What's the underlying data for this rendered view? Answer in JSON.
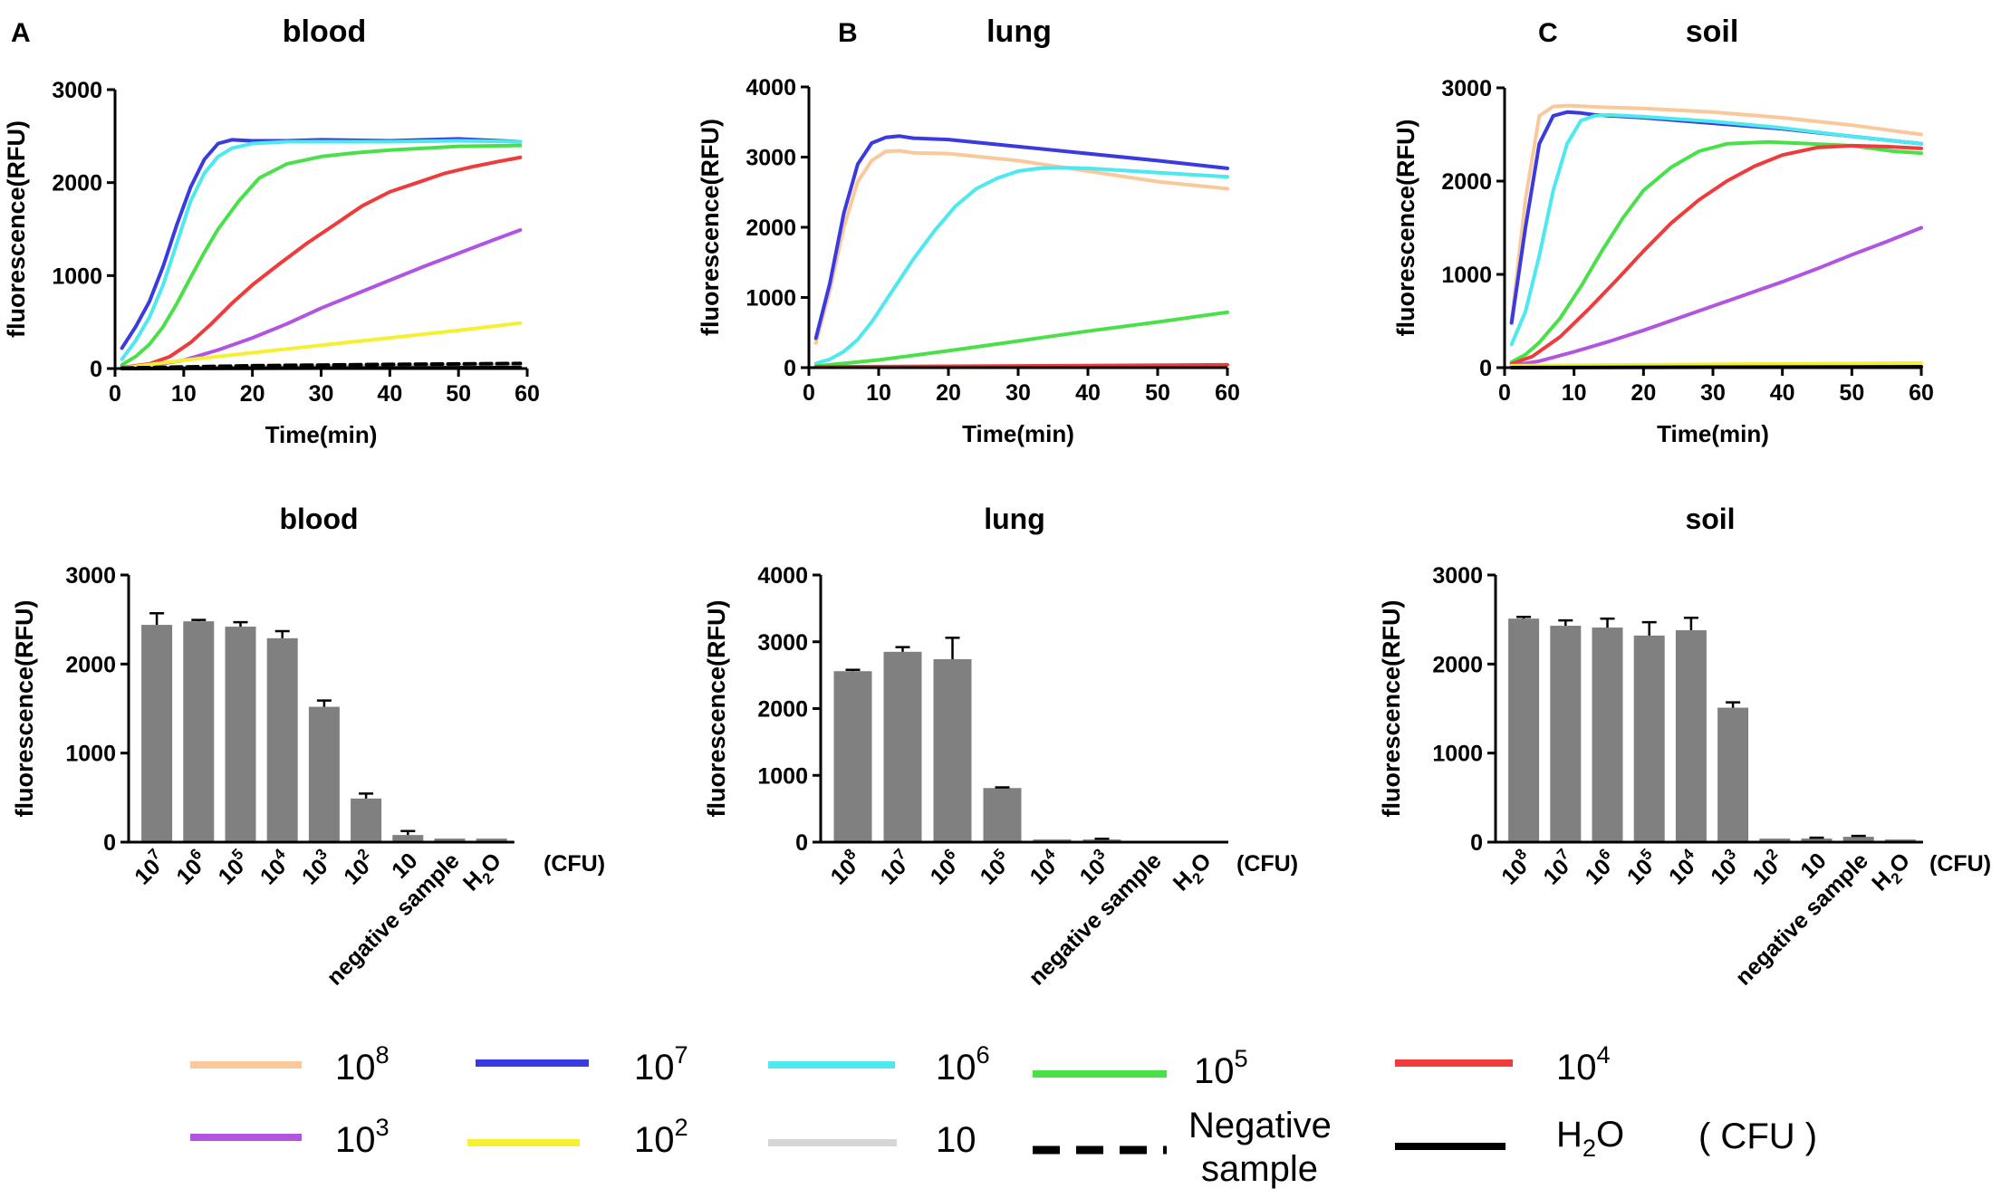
{
  "figure": {
    "colors": {
      "1e8": "#f9c89b",
      "1e7": "#3a3ae0",
      "1e6": "#4de8f0",
      "1e5": "#4ae04a",
      "1e4": "#ef3b3b",
      "1e3": "#b155e0",
      "1e2": "#f5f032",
      "10": "#d6d6d6",
      "neg": "#000000",
      "h2o": "#000000",
      "bar": "#808080"
    },
    "legend": {
      "unit": "( CFU )",
      "items": [
        {
          "key": "1e8",
          "base": "10",
          "sup": "8",
          "dash": false
        },
        {
          "key": "1e7",
          "base": "10",
          "sup": "7",
          "dash": false
        },
        {
          "key": "1e6",
          "base": "10",
          "sup": "6",
          "dash": false
        },
        {
          "key": "1e5",
          "base": "10",
          "sup": "5",
          "dash": false
        },
        {
          "key": "1e4",
          "base": "10",
          "sup": "4",
          "dash": false
        },
        {
          "key": "1e3",
          "base": "10",
          "sup": "3",
          "dash": false
        },
        {
          "key": "1e2",
          "base": "10",
          "sup": "2",
          "dash": false
        },
        {
          "key": "10",
          "base": "10",
          "sup": "",
          "dash": false
        },
        {
          "key": "neg",
          "text": "Negative",
          "text2": "sample",
          "dash": true
        },
        {
          "key": "h2o",
          "text": "H",
          "sub": "2",
          "text_after": "O",
          "dash": false
        }
      ]
    }
  },
  "chart_data": [
    {
      "id": "A-line",
      "panel_letter": "A",
      "type": "line",
      "title": "blood",
      "xlabel": "Time(min)",
      "ylabel": "fluorescence(RFU)",
      "xlim": [
        0,
        60
      ],
      "ylim": [
        0,
        3000
      ],
      "xticks": [
        0,
        10,
        20,
        30,
        40,
        50,
        60
      ],
      "yticks": [
        0,
        1000,
        2000,
        3000
      ],
      "series": [
        {
          "key": "1e7",
          "name": "10^7",
          "x": [
            1,
            3,
            5,
            7,
            9,
            11,
            13,
            15,
            17,
            20,
            25,
            30,
            40,
            50,
            59
          ],
          "y": [
            220,
            450,
            720,
            1100,
            1550,
            1950,
            2250,
            2420,
            2460,
            2450,
            2450,
            2460,
            2450,
            2470,
            2440
          ]
        },
        {
          "key": "1e6",
          "name": "10^6",
          "x": [
            1,
            3,
            5,
            7,
            9,
            11,
            13,
            15,
            17,
            20,
            25,
            30,
            40,
            50,
            59
          ],
          "y": [
            100,
            300,
            550,
            900,
            1350,
            1800,
            2100,
            2280,
            2370,
            2420,
            2440,
            2440,
            2440,
            2450,
            2440
          ]
        },
        {
          "key": "1e5",
          "name": "10^5",
          "x": [
            1,
            3,
            5,
            7,
            9,
            11,
            13,
            15,
            18,
            21,
            25,
            30,
            35,
            40,
            50,
            59
          ],
          "y": [
            40,
            130,
            260,
            450,
            700,
            980,
            1250,
            1500,
            1800,
            2050,
            2200,
            2280,
            2320,
            2350,
            2390,
            2400
          ]
        },
        {
          "key": "1e4",
          "name": "10^4",
          "x": [
            1,
            5,
            8,
            11,
            14,
            17,
            20,
            24,
            28,
            32,
            36,
            40,
            44,
            48,
            52,
            56,
            59
          ],
          "y": [
            10,
            50,
            130,
            280,
            480,
            700,
            900,
            1130,
            1350,
            1550,
            1750,
            1900,
            2000,
            2100,
            2170,
            2230,
            2270
          ]
        },
        {
          "key": "1e3",
          "name": "10^3",
          "x": [
            1,
            5,
            10,
            15,
            20,
            25,
            30,
            35,
            40,
            45,
            50,
            55,
            59
          ],
          "y": [
            10,
            30,
            90,
            200,
            330,
            480,
            650,
            800,
            950,
            1100,
            1240,
            1380,
            1490
          ]
        },
        {
          "key": "1e2",
          "name": "10^2",
          "x": [
            1,
            10,
            20,
            30,
            40,
            50,
            59
          ],
          "y": [
            5,
            90,
            170,
            250,
            330,
            410,
            490
          ]
        },
        {
          "key": "10",
          "name": "10",
          "x": [
            1,
            30,
            59
          ],
          "y": [
            5,
            20,
            35
          ]
        },
        {
          "key": "neg",
          "name": "Negative sample",
          "dash": true,
          "x": [
            1,
            20,
            40,
            59
          ],
          "y": [
            5,
            30,
            45,
            55
          ]
        },
        {
          "key": "h2o",
          "name": "H2O",
          "x": [
            1,
            30,
            59
          ],
          "y": [
            0,
            5,
            10
          ]
        }
      ]
    },
    {
      "id": "B-line",
      "panel_letter": "B",
      "type": "line",
      "title": "lung",
      "xlabel": "Time(min)",
      "ylabel": "fluorescence(RFU)",
      "xlim": [
        0,
        60
      ],
      "ylim": [
        0,
        4000
      ],
      "xticks": [
        0,
        10,
        20,
        30,
        40,
        50,
        60
      ],
      "yticks": [
        0,
        1000,
        2000,
        3000,
        4000
      ],
      "series": [
        {
          "key": "1e8",
          "name": "10^8",
          "x": [
            1,
            3,
            5,
            7,
            9,
            11,
            13,
            15,
            20,
            30,
            40,
            50,
            60
          ],
          "y": [
            350,
            1100,
            2000,
            2650,
            2950,
            3080,
            3090,
            3060,
            3050,
            2950,
            2800,
            2650,
            2550
          ]
        },
        {
          "key": "1e7",
          "name": "10^7",
          "x": [
            1,
            3,
            5,
            7,
            9,
            11,
            13,
            15,
            20,
            30,
            40,
            50,
            60
          ],
          "y": [
            420,
            1200,
            2200,
            2900,
            3200,
            3280,
            3300,
            3270,
            3250,
            3150,
            3050,
            2950,
            2840
          ]
        },
        {
          "key": "1e6",
          "name": "10^6",
          "x": [
            1,
            3,
            5,
            7,
            9,
            11,
            13,
            15,
            18,
            21,
            24,
            27,
            30,
            33,
            36,
            40,
            50,
            60
          ],
          "y": [
            60,
            120,
            230,
            400,
            650,
            950,
            1250,
            1550,
            1950,
            2300,
            2550,
            2700,
            2800,
            2840,
            2850,
            2840,
            2780,
            2720
          ]
        },
        {
          "key": "1e5",
          "name": "10^5",
          "x": [
            1,
            10,
            20,
            30,
            40,
            50,
            60
          ],
          "y": [
            20,
            110,
            240,
            380,
            520,
            650,
            790
          ]
        },
        {
          "key": "1e4",
          "name": "10^4",
          "x": [
            1,
            30,
            60
          ],
          "y": [
            10,
            25,
            40
          ]
        }
      ]
    },
    {
      "id": "C-line",
      "panel_letter": "C",
      "type": "line",
      "title": "soil",
      "xlabel": "Time(min)",
      "ylabel": "fluorescence(RFU)",
      "xlim": [
        0,
        60
      ],
      "ylim": [
        0,
        3000
      ],
      "xticks": [
        0,
        10,
        20,
        30,
        40,
        50,
        60
      ],
      "yticks": [
        0,
        1000,
        2000,
        3000
      ],
      "series": [
        {
          "key": "1e8",
          "name": "10^8",
          "x": [
            1,
            3,
            5,
            7,
            9,
            12,
            15,
            20,
            30,
            40,
            50,
            60
          ],
          "y": [
            500,
            1800,
            2700,
            2800,
            2810,
            2800,
            2790,
            2780,
            2740,
            2680,
            2600,
            2500
          ]
        },
        {
          "key": "1e7",
          "name": "10^7",
          "x": [
            1,
            3,
            5,
            7,
            9,
            11,
            13,
            20,
            30,
            40,
            50,
            60
          ],
          "y": [
            480,
            1500,
            2400,
            2700,
            2740,
            2730,
            2710,
            2680,
            2620,
            2560,
            2480,
            2400
          ]
        },
        {
          "key": "1e6",
          "name": "10^6",
          "x": [
            1,
            3,
            5,
            7,
            9,
            11,
            13,
            15,
            20,
            30,
            40,
            50,
            60
          ],
          "y": [
            250,
            600,
            1200,
            1900,
            2400,
            2650,
            2700,
            2710,
            2690,
            2640,
            2570,
            2480,
            2400
          ]
        },
        {
          "key": "1e5",
          "name": "10^5",
          "x": [
            1,
            3,
            5,
            8,
            11,
            14,
            17,
            20,
            24,
            28,
            32,
            38,
            44,
            50,
            56,
            60
          ],
          "y": [
            60,
            140,
            270,
            530,
            870,
            1250,
            1600,
            1900,
            2150,
            2320,
            2400,
            2420,
            2400,
            2380,
            2320,
            2300
          ]
        },
        {
          "key": "1e4",
          "name": "10^4",
          "x": [
            1,
            4,
            8,
            12,
            16,
            20,
            24,
            28,
            32,
            36,
            40,
            45,
            50,
            55,
            60
          ],
          "y": [
            40,
            120,
            330,
            620,
            930,
            1250,
            1550,
            1800,
            2000,
            2160,
            2280,
            2360,
            2380,
            2370,
            2350
          ]
        },
        {
          "key": "1e3",
          "name": "10^3",
          "x": [
            1,
            5,
            10,
            15,
            20,
            25,
            30,
            35,
            40,
            45,
            50,
            55,
            60
          ],
          "y": [
            20,
            70,
            170,
            280,
            400,
            530,
            660,
            790,
            920,
            1060,
            1210,
            1350,
            1500
          ]
        },
        {
          "key": "1e2",
          "name": "10^2",
          "x": [
            1,
            30,
            60
          ],
          "y": [
            20,
            35,
            50
          ]
        },
        {
          "key": "h2o",
          "name": "H2O",
          "x": [
            1,
            30,
            60
          ],
          "y": [
            0,
            5,
            10
          ]
        }
      ]
    },
    {
      "id": "A-bar",
      "type": "bar",
      "title": "blood",
      "ylabel": "fluorescence(RFU)",
      "unit": "(CFU)",
      "ylim": [
        0,
        3000
      ],
      "yticks": [
        0,
        1000,
        2000,
        3000
      ],
      "categories": [
        {
          "base": "10",
          "sup": "7"
        },
        {
          "base": "10",
          "sup": "6"
        },
        {
          "base": "10",
          "sup": "5"
        },
        {
          "base": "10",
          "sup": "4"
        },
        {
          "base": "10",
          "sup": "3"
        },
        {
          "base": "10",
          "sup": "2"
        },
        {
          "text": "10"
        },
        {
          "text": "negative sample"
        },
        {
          "text": "H",
          "sub": "2",
          "text_after": "O"
        }
      ],
      "values": [
        2440,
        2480,
        2420,
        2290,
        1520,
        490,
        80,
        40,
        40
      ],
      "errors": [
        130,
        15,
        50,
        80,
        70,
        55,
        45,
        0,
        0
      ]
    },
    {
      "id": "B-bar",
      "type": "bar",
      "title": "lung",
      "ylabel": "fluorescence(RFU)",
      "unit": "(CFU)",
      "ylim": [
        0,
        4000
      ],
      "yticks": [
        0,
        1000,
        2000,
        3000,
        4000
      ],
      "categories": [
        {
          "base": "10",
          "sup": "8"
        },
        {
          "base": "10",
          "sup": "7"
        },
        {
          "base": "10",
          "sup": "6"
        },
        {
          "base": "10",
          "sup": "5"
        },
        {
          "base": "10",
          "sup": "4"
        },
        {
          "base": "10",
          "sup": "3"
        },
        {
          "text": "negative sample"
        },
        {
          "text": "H",
          "sub": "2",
          "text_after": "O"
        }
      ],
      "values": [
        2560,
        2850,
        2740,
        810,
        40,
        40,
        20,
        20
      ],
      "errors": [
        20,
        70,
        320,
        10,
        0,
        10,
        0,
        0
      ]
    },
    {
      "id": "C-bar",
      "type": "bar",
      "title": "soil",
      "ylabel": "fluorescence(RFU)",
      "unit": "(CFU)",
      "ylim": [
        0,
        3000
      ],
      "yticks": [
        0,
        1000,
        2000,
        3000
      ],
      "categories": [
        {
          "base": "10",
          "sup": "8"
        },
        {
          "base": "10",
          "sup": "7"
        },
        {
          "base": "10",
          "sup": "6"
        },
        {
          "base": "10",
          "sup": "5"
        },
        {
          "base": "10",
          "sup": "4"
        },
        {
          "base": "10",
          "sup": "3"
        },
        {
          "base": "10",
          "sup": "2"
        },
        {
          "text": "10"
        },
        {
          "text": "negative sample"
        },
        {
          "text": "H",
          "sub": "2",
          "text_after": "O"
        }
      ],
      "values": [
        2510,
        2430,
        2410,
        2320,
        2380,
        1510,
        40,
        40,
        60,
        30
      ],
      "errors": [
        20,
        60,
        100,
        150,
        140,
        60,
        0,
        10,
        10,
        0
      ]
    }
  ]
}
